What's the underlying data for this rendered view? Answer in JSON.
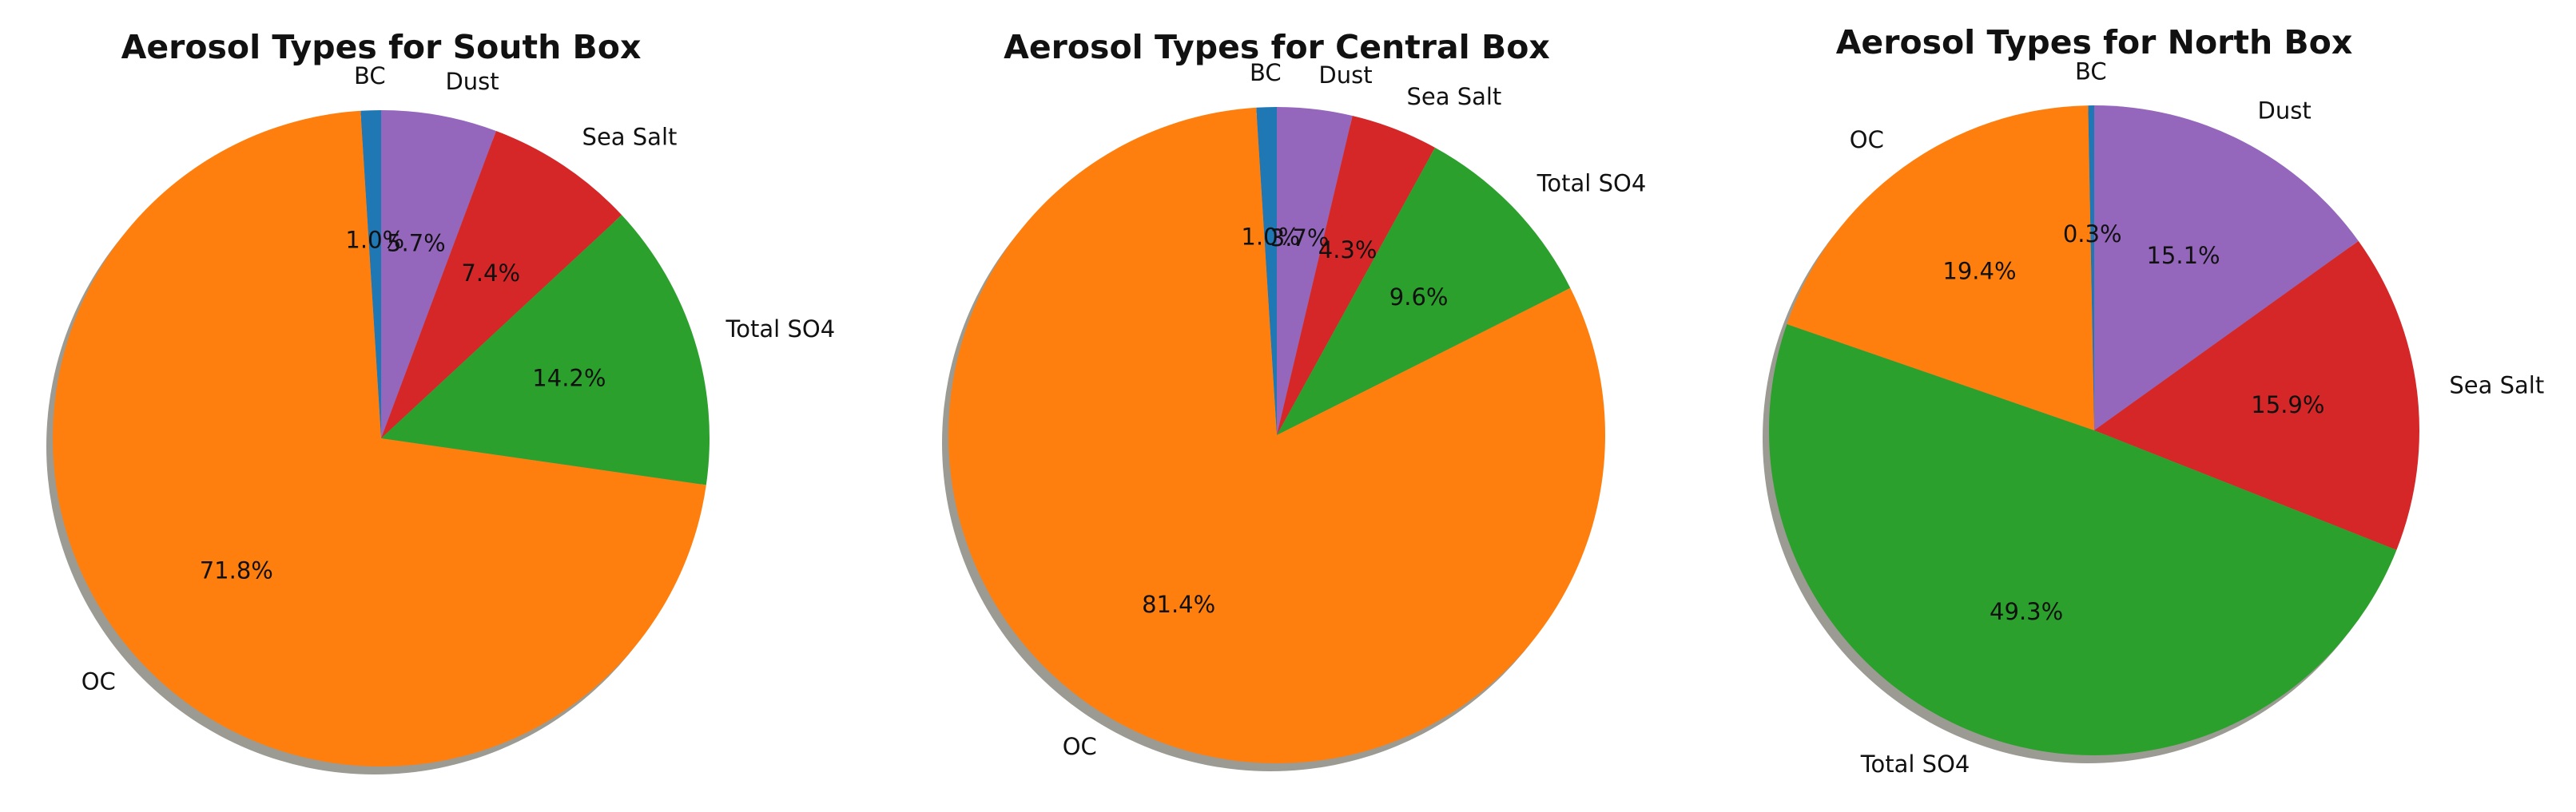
{
  "chart_data": [
    {
      "type": "pie",
      "title": "Aerosol Types for South Box",
      "categories": [
        "BC",
        "Dust",
        "Sea Salt",
        "Total SO4",
        "OC"
      ],
      "values": [
        1.0,
        5.7,
        7.4,
        14.2,
        71.8
      ],
      "value_labels": [
        "1.0%",
        "5.7%",
        "7.4%",
        "14.2%",
        "71.8%"
      ],
      "colors": [
        "#1f77b4",
        "#9467bd",
        "#d62728",
        "#2ca02c",
        "#ff7f0e"
      ],
      "shadow": true
    },
    {
      "type": "pie",
      "title": "Aerosol Types for Central Box",
      "categories": [
        "BC",
        "Dust",
        "Sea Salt",
        "Total SO4",
        "OC"
      ],
      "values": [
        1.0,
        3.7,
        4.3,
        9.6,
        81.4
      ],
      "value_labels": [
        "1.0%",
        "3.7%",
        "4.3%",
        "9.6%",
        "81.4%"
      ],
      "colors": [
        "#1f77b4",
        "#9467bd",
        "#d62728",
        "#2ca02c",
        "#ff7f0e"
      ],
      "shadow": true
    },
    {
      "type": "pie",
      "title": "Aerosol Types for North Box",
      "categories": [
        "BC",
        "Dust",
        "Sea Salt",
        "Total SO4",
        "OC"
      ],
      "values": [
        0.3,
        15.1,
        15.9,
        49.3,
        19.4
      ],
      "value_labels": [
        "0.3%",
        "15.1%",
        "15.9%",
        "49.3%",
        "19.4%"
      ],
      "colors": [
        "#1f77b4",
        "#9467bd",
        "#d62728",
        "#2ca02c",
        "#ff7f0e"
      ],
      "shadow": true
    }
  ]
}
